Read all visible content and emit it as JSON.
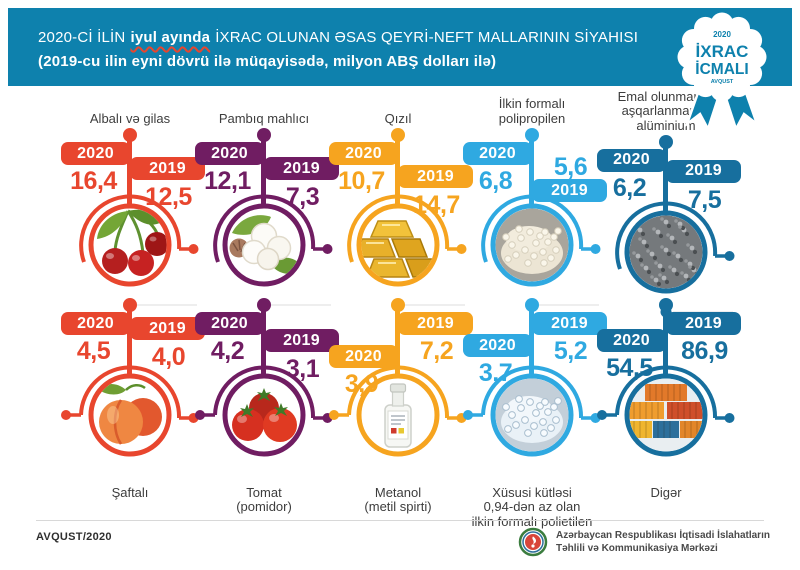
{
  "header": {
    "line1_pre": "2020-Cİ İLİN",
    "line1_highlight": "iyul ayında",
    "line1_post": "İXRAC OLUNAN ƏSAS QEYRİ-NEFT MALLARININ SİYAHISI",
    "line2": "(2019-cu ilin eyni dövrü ilə müqayisədə, milyon ABŞ dolları ilə)",
    "bg_color": "#0e81ad",
    "highlight_underline_color": "#e8462e"
  },
  "badge": {
    "year": "2020",
    "title1": "İXRAC",
    "title2": "İCMALI",
    "month": "AVQUST"
  },
  "legend": {
    "current_year": "2020",
    "previous_year": "2019"
  },
  "products": [
    {
      "name": "Albalı və gilas",
      "name_lines": [
        "Albalı və gilas"
      ],
      "row": 1,
      "color": "#e8462e",
      "icon": "cherries",
      "value_2020": "16,4",
      "value_2019": "12,5",
      "layout": {
        "f20": 0,
        "v20": 25,
        "f19": 15,
        "v19": 41
      }
    },
    {
      "name": "Pambıq mahlıcı",
      "name_lines": [
        "Pambıq mahlıcı"
      ],
      "row": 1,
      "color": "#701d62",
      "icon": "cotton",
      "value_2020": "12,1",
      "value_2019": "7,3",
      "layout": {
        "f20": 0,
        "v20": 25,
        "f19": 15,
        "v19": 41
      }
    },
    {
      "name": "Qızıl",
      "name_lines": [
        "Qızıl"
      ],
      "row": 1,
      "color": "#f6a41f",
      "icon": "gold",
      "value_2020": "10,7",
      "value_2019": "14,7",
      "layout": {
        "f20": 0,
        "v20": 25,
        "f19": 23,
        "v19": 49
      }
    },
    {
      "name": "İlkin formalı polipropilen",
      "name_lines": [
        "İlkin formalı",
        "polipropilen"
      ],
      "row": 1,
      "color": "#2fa9e1",
      "icon": "pellets-white",
      "value_2020": "6,8",
      "value_2019": "5,6",
      "layout": {
        "f20": 0,
        "v20": 25,
        "f19": 37,
        "v19": 11
      }
    },
    {
      "name": "Emal olunmamış aşqarlanmamış alüminium",
      "name_lines": [
        "Emal olunmamış",
        "aşqarlanmamış",
        "alüminium"
      ],
      "row": 1,
      "color": "#176f9e",
      "icon": "aluminium",
      "value_2020": "6,2",
      "value_2019": "7,5",
      "layout": {
        "f20": 0,
        "v20": 25,
        "f19": 11,
        "v19": 37
      }
    },
    {
      "name": "Şaftalı",
      "name_lines": [
        "Şaftalı"
      ],
      "row": 2,
      "color": "#e8462e",
      "icon": "peach",
      "value_2020": "4,5",
      "value_2019": "4,0",
      "layout": {
        "f20": 0,
        "v20": 25,
        "f19": 5,
        "v19": 31
      }
    },
    {
      "name": "Tomat (pomidor)",
      "name_lines": [
        "Tomat",
        "(pomidor)"
      ],
      "row": 2,
      "color": "#701d62",
      "icon": "tomato",
      "value_2020": "4,2",
      "value_2019": "3,1",
      "layout": {
        "f20": 0,
        "v20": 25,
        "f19": 17,
        "v19": 43
      }
    },
    {
      "name": "Metanol (metil spirti)",
      "name_lines": [
        "Metanol",
        "(metil spirti)"
      ],
      "row": 2,
      "color": "#f6a41f",
      "icon": "methanol",
      "value_2020": "3,9",
      "value_2019": "7,2",
      "layout": {
        "f20": 33,
        "v20": 58,
        "f19": 0,
        "v19": 25
      }
    },
    {
      "name": "Xüsusi kütləsi 0,94-dən az olan ilkin formalı polietilen",
      "name_lines": [
        "Xüsusi kütləsi",
        "0,94-dən az olan",
        "ilkin formalı polietilen"
      ],
      "row": 2,
      "color": "#2fa9e1",
      "icon": "pellets-blue",
      "value_2020": "3,7",
      "value_2019": "5,2",
      "layout": {
        "f20": 22,
        "v20": 47,
        "f19": 0,
        "v19": 25
      }
    },
    {
      "name": "Digər",
      "name_lines": [
        "Digər"
      ],
      "row": 2,
      "color": "#176f9e",
      "icon": "containers",
      "value_2020": "54,5",
      "value_2019": "86,9",
      "layout": {
        "f20": 17,
        "v20": 42,
        "f19": 0,
        "v19": 25
      }
    }
  ],
  "footer": {
    "issue": "AVQUST/2020",
    "org_line1": "Azərbaycan Respublikası İqtisadi İslahatların",
    "org_line2": "Təhlili və Kommunikasiya Mərkəzi"
  },
  "chart_data": {
    "type": "bar",
    "title": "2020-Cİ İLİN iyul ayında İXRAC OLUNAN ƏSAS QEYRİ-NEFT MALLARININ SİYAHISI",
    "subtitle": "2019-cu ilin eyni dövrü ilə müqayisədə, milyon ABŞ dolları ilə",
    "categories": [
      "Albalı və gilas",
      "Pambıq mahlıcı",
      "Qızıl",
      "İlkin formalı polipropilen",
      "Emal olunmamış aşqarlanmamış alüminium",
      "Şaftalı",
      "Tomat (pomidor)",
      "Metanol (metil spirti)",
      "Xüsusi kütləsi 0,94-dən az olan ilkin formalı polietilen",
      "Digər"
    ],
    "series": [
      {
        "name": "2020",
        "values": [
          16.4,
          12.1,
          10.7,
          6.8,
          6.2,
          4.5,
          4.2,
          3.9,
          3.7,
          54.5
        ]
      },
      {
        "name": "2019",
        "values": [
          12.5,
          7.3,
          14.7,
          5.6,
          7.5,
          4.0,
          3.1,
          7.2,
          5.2,
          86.9
        ]
      }
    ],
    "unit": "milyon ABŞ dolları",
    "series_colors": [
      "#e8462e",
      "#701d62",
      "#f6a41f",
      "#2fa9e1",
      "#176f9e"
    ],
    "legend_position": "per-item flags",
    "grid": false
  }
}
